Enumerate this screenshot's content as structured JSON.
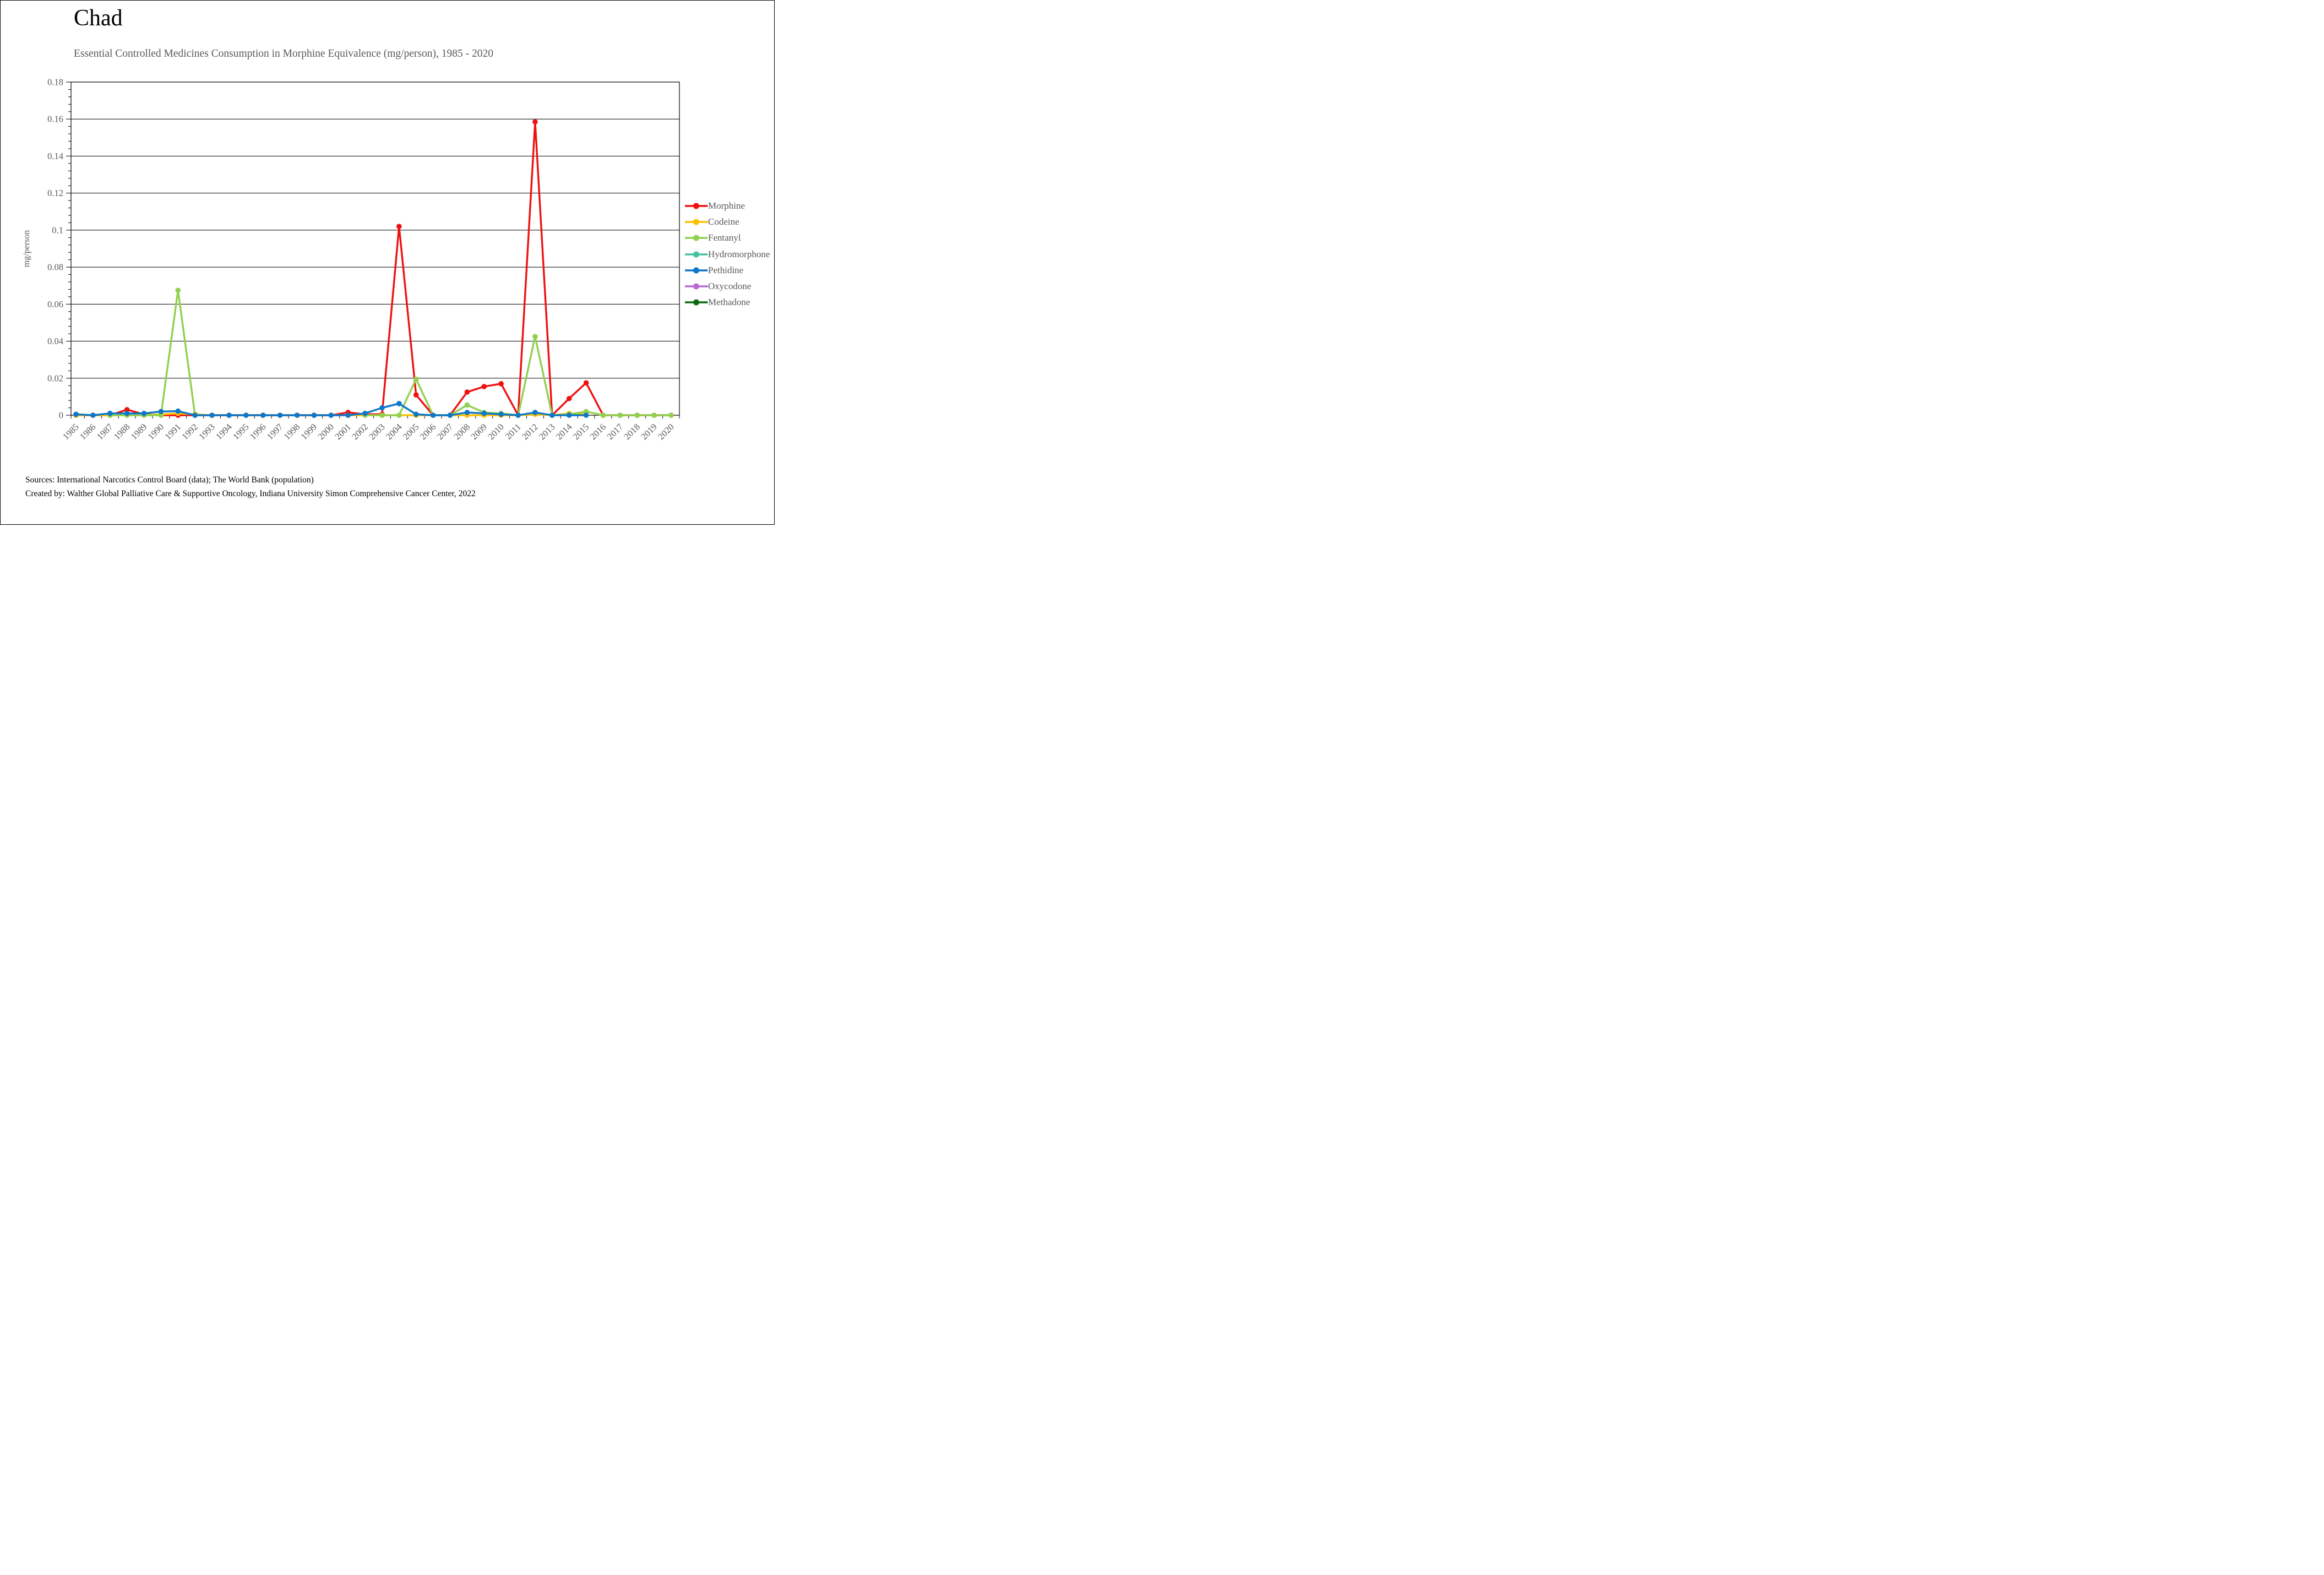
{
  "title": "Chad",
  "subtitle": "Essential Controlled Medicines Consumption in Morphine Equivalence (mg/person), 1985 - 2020",
  "footer": {
    "line1": "Sources: International Narcotics Control Board (data); The World Bank (population)",
    "line2": "Created by: Walther Global Palliative Care & Supportive Oncology, Indiana University Simon Comprehensive Cancer Center, 2022"
  },
  "chart_data": {
    "type": "line",
    "title": "Chad",
    "subtitle": "Essential Controlled Medicines Consumption in Morphine Equivalence (mg/person), 1985 - 2020",
    "xlabel": "",
    "ylabel": "mg/person",
    "ylim": [
      0,
      0.18
    ],
    "ytick_step": 0.02,
    "grid": "horizontal-major",
    "legend_position": "right",
    "x": [
      1985,
      1986,
      1987,
      1988,
      1989,
      1990,
      1991,
      1992,
      1993,
      1994,
      1995,
      1996,
      1997,
      1998,
      1999,
      2000,
      2001,
      2002,
      2003,
      2004,
      2005,
      2006,
      2007,
      2008,
      2009,
      2010,
      2011,
      2012,
      2013,
      2014,
      2015,
      2016,
      2017,
      2018,
      2019,
      2020
    ],
    "series": [
      {
        "name": "Morphine",
        "color": "#EE1111",
        "values": [
          0,
          0,
          0,
          0.003,
          0.0005,
          0,
          0,
          0,
          0,
          0,
          0,
          0,
          0,
          0,
          0,
          0,
          0.0015,
          0.0005,
          0.0005,
          0.102,
          0.011,
          0,
          0,
          0.0125,
          0.0155,
          0.017,
          0,
          0.1585,
          0,
          0.009,
          0.0175,
          0,
          0,
          0,
          0,
          0
        ]
      },
      {
        "name": "Codeine",
        "color": "#FFC000",
        "values": [
          0,
          0,
          0,
          0,
          0,
          0.0005,
          0.001,
          0.0005,
          0,
          0,
          0,
          0,
          0,
          0,
          0,
          0,
          0,
          0,
          0,
          0,
          0,
          0,
          0,
          0,
          0,
          0,
          0,
          0.0005,
          0,
          0.001,
          0.0005,
          null,
          null,
          null,
          null,
          null
        ]
      },
      {
        "name": "Fentanyl",
        "color": "#92D050",
        "values": [
          null,
          null,
          0,
          0,
          0,
          0,
          0.0675,
          0,
          null,
          null,
          null,
          null,
          null,
          null,
          null,
          null,
          null,
          0,
          0,
          0,
          0.0195,
          0,
          0,
          0.0055,
          0.0015,
          0.001,
          0,
          0.0425,
          0,
          0.0005,
          0.002,
          0,
          0,
          0,
          0,
          0
        ]
      },
      {
        "name": "Hydromorphone",
        "color": "#47C1A4",
        "values": []
      },
      {
        "name": "Pethidine",
        "color": "#0E77C8",
        "values": [
          0.0005,
          0,
          0.001,
          0.001,
          0.001,
          0.002,
          0.0022,
          0,
          0,
          0,
          0,
          0,
          0,
          0,
          0,
          0,
          0,
          0.001,
          0.004,
          0.0063,
          0.0005,
          0,
          0,
          0.0015,
          0.001,
          0.0005,
          0,
          0.0015,
          0,
          0,
          0,
          null,
          null,
          null,
          null,
          null
        ]
      },
      {
        "name": "Oxycodone",
        "color": "#BA68D8",
        "values": []
      },
      {
        "name": "Methadone",
        "color": "#096B11",
        "values": []
      }
    ]
  }
}
